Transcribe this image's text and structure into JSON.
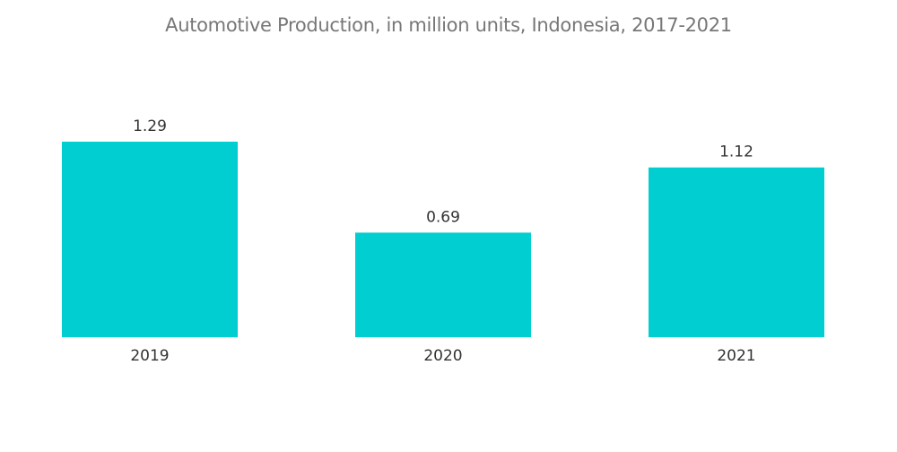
{
  "chart_data": {
    "type": "bar",
    "title": "Automotive Production, in million units, Indonesia, 2017-2021",
    "categories": [
      "2019",
      "2020",
      "2021"
    ],
    "values": [
      1.29,
      0.69,
      1.12
    ],
    "data_labels": [
      "1.29",
      "0.69",
      "1.12"
    ],
    "xlabel": "",
    "ylabel": "",
    "ylim": [
      0,
      1.5
    ],
    "grid": false,
    "legend": "none",
    "colors": {
      "bar": "#00CED1",
      "label_text": "#333333",
      "title_text": "#777777"
    }
  }
}
